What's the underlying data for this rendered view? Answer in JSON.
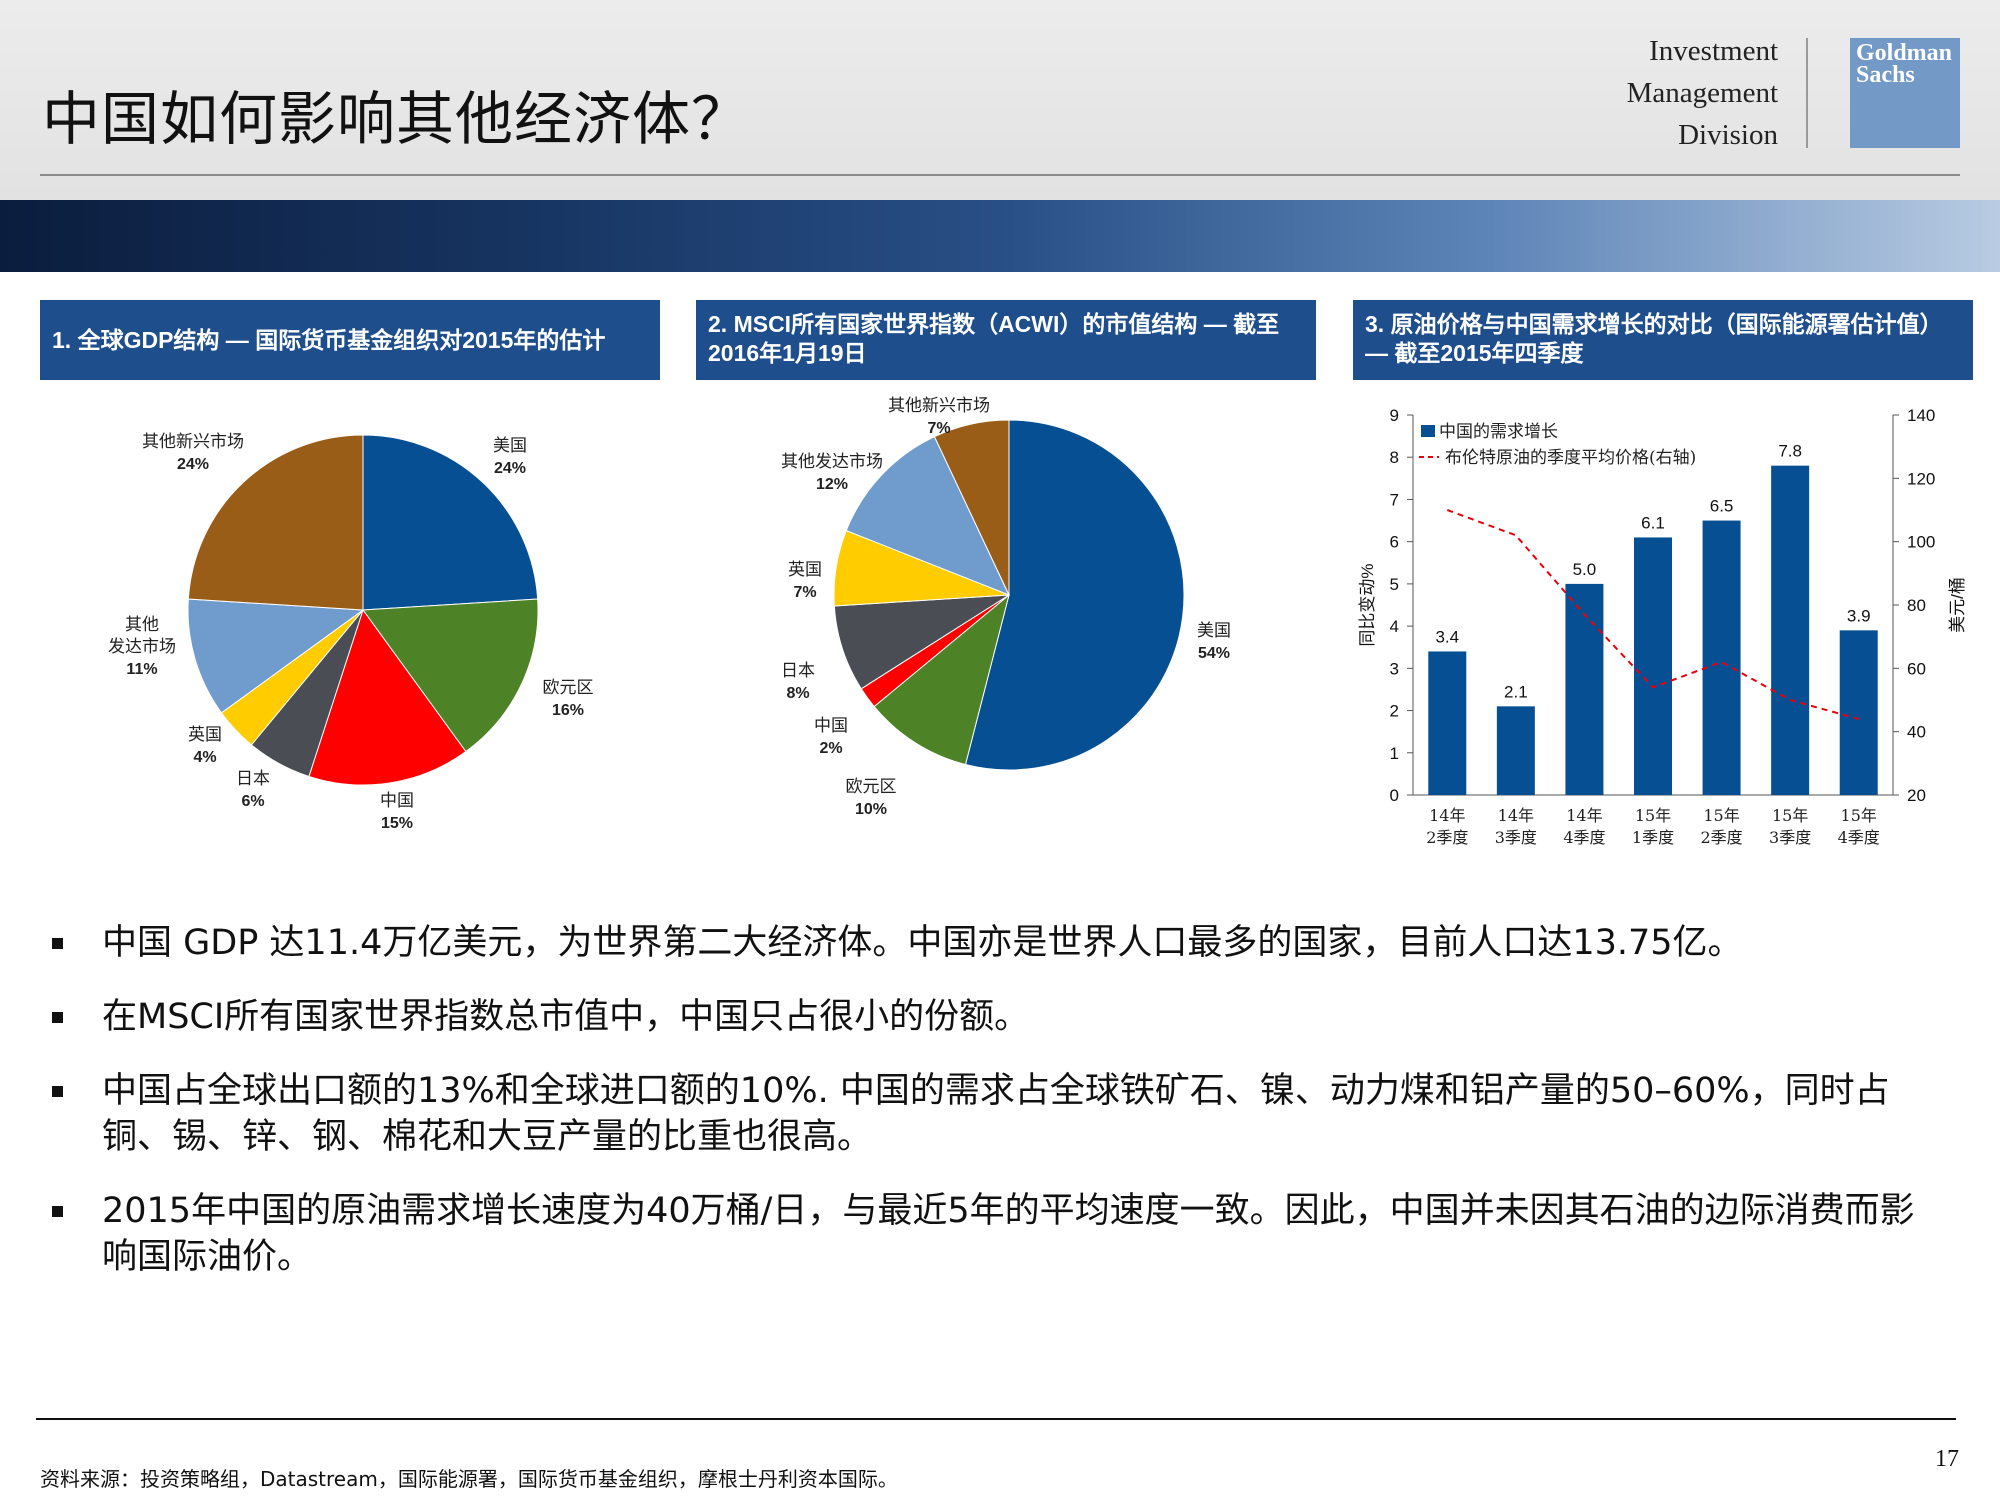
{
  "header": {
    "title": "中国如何影响其他经济体？",
    "division_lines": [
      "Investment",
      "Management",
      "Division"
    ],
    "logo_text": [
      "Goldman",
      "Sachs"
    ]
  },
  "panels": [
    {
      "heading": "1. 全球GDP结构 — 国际货币基金组织对2015年的估计"
    },
    {
      "heading": "2. MSCI所有国家世界指数（ACWI）的市值结构 — 截至2016年1月19日"
    },
    {
      "heading": "3. 原油价格与中国需求增长的对比（国际能源署估计值） — 截至2015年四季度"
    }
  ],
  "chart_data": [
    {
      "type": "pie",
      "title": "1. 全球GDP结构 — 国际货币基金组织对2015年的估计",
      "slices": [
        {
          "label": "美国",
          "value": 24,
          "pct": "24%",
          "color": "#064f93"
        },
        {
          "label": "欧元区",
          "value": 16,
          "pct": "16%",
          "color": "#4d8227"
        },
        {
          "label": "中国",
          "value": 15,
          "pct": "15%",
          "color": "#ff0000"
        },
        {
          "label": "日本",
          "value": 6,
          "pct": "6%",
          "color": "#4a4d53"
        },
        {
          "label": "英国",
          "value": 4,
          "pct": "4%",
          "color": "#ffcc00"
        },
        {
          "label": "其他\n发达市场",
          "value": 11,
          "pct": "11%",
          "color": "#709ccd"
        },
        {
          "label": "其他新兴市场",
          "value": 24,
          "pct": "24%",
          "color": "#9a5d17"
        }
      ]
    },
    {
      "type": "pie",
      "title": "2. MSCI所有国家世界指数（ACWI）的市值结构 — 截至2016年1月19日",
      "slices": [
        {
          "label": "美国",
          "value": 54,
          "pct": "54%",
          "color": "#064f93"
        },
        {
          "label": "欧元区",
          "value": 10,
          "pct": "10%",
          "color": "#4d8227"
        },
        {
          "label": "中国",
          "value": 2,
          "pct": "2%",
          "color": "#ff0000"
        },
        {
          "label": "日本",
          "value": 8,
          "pct": "8%",
          "color": "#4a4d53"
        },
        {
          "label": "英国",
          "value": 7,
          "pct": "7%",
          "color": "#ffcc00"
        },
        {
          "label": "其他发达市场",
          "value": 12,
          "pct": "12%",
          "color": "#709ccd"
        },
        {
          "label": "其他新兴市场",
          "value": 7,
          "pct": "7%",
          "color": "#9a5d17"
        }
      ]
    },
    {
      "type": "bar",
      "title": "3. 原油价格与中国需求增长的对比（国际能源署估计值） — 截至2015年四季度",
      "categories": [
        [
          "14年",
          "2季度"
        ],
        [
          "14年",
          "3季度"
        ],
        [
          "14年",
          "4季度"
        ],
        [
          "15年",
          "1季度"
        ],
        [
          "15年",
          "2季度"
        ],
        [
          "15年",
          "3季度"
        ],
        [
          "15年",
          "4季度"
        ]
      ],
      "series": [
        {
          "name": "中国的需求增长",
          "type": "bar",
          "axis": "left",
          "color": "#064f93",
          "values": [
            3.4,
            2.1,
            5.0,
            6.1,
            6.5,
            7.8,
            3.9
          ],
          "labels": [
            "3.4",
            "2.1",
            "5.0",
            "6.1",
            "6.5",
            "7.8",
            "3.9"
          ]
        },
        {
          "name": "布伦特原油的季度平均价格(右轴)",
          "type": "line",
          "axis": "right",
          "color": "#e8000b",
          "dash": true,
          "values": [
            110,
            102,
            77,
            54,
            62,
            50,
            44
          ]
        }
      ],
      "ylabel": "同比变动%",
      "y2label": "美元/桶",
      "ylim": [
        0,
        9
      ],
      "yticks": [
        "0",
        "1",
        "2",
        "3",
        "4",
        "5",
        "6",
        "7",
        "8",
        "9"
      ],
      "y2lim": [
        20,
        140
      ],
      "y2ticks": [
        "20",
        "40",
        "60",
        "80",
        "100",
        "120",
        "140"
      ],
      "legend_position": "top-left"
    }
  ],
  "bullets": [
    "中国 GDP 达11.4万亿美元，为世界第二大经济体。中国亦是世界人口最多的国家，目前人口达13.75亿。",
    "在MSCI所有国家世界指数总市值中，中国只占很小的份额。",
    "中国占全球出口额的13%和全球进口额的10%. 中国的需求占全球铁矿石、镍、动力煤和铝产量的50–60%，同时占铜、锡、锌、钢、棉花和大豆产量的比重也很高。",
    "2015年中国的原油需求增长速度为40万桶/日，与最近5年的平均速度一致。因此，中国并未因其石油的边际消费而影响国际油价。"
  ],
  "footer": {
    "source": "资料来源：投资策略组，Datastream，国际能源署，国际货币基金组织，摩根士丹利资本国际。",
    "page": "17"
  }
}
